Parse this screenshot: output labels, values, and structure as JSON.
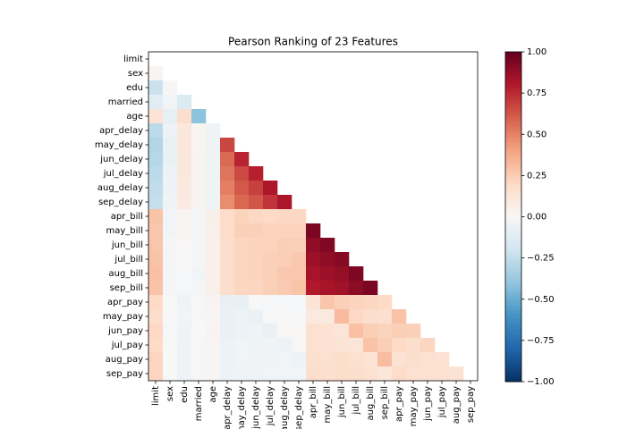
{
  "chart_data": {
    "type": "heatmap",
    "title": "Pearson Ranking of 23 Features",
    "categories": [
      "limit",
      "sex",
      "edu",
      "married",
      "age",
      "apr_delay",
      "may_delay",
      "jun_delay",
      "jul_delay",
      "aug_delay",
      "sep_delay",
      "apr_bill",
      "may_bill",
      "jun_bill",
      "jul_bill",
      "aug_bill",
      "sep_bill",
      "apr_pay",
      "may_pay",
      "jun_pay",
      "jul_pay",
      "aug_pay",
      "sep_pay"
    ],
    "values": [
      [],
      [
        0.02
      ],
      [
        -0.22,
        0.01
      ],
      [
        -0.11,
        -0.03,
        -0.14
      ],
      [
        0.14,
        -0.09,
        0.18,
        -0.41
      ],
      [
        -0.27,
        -0.06,
        0.11,
        0.02,
        -0.04
      ],
      [
        -0.3,
        -0.07,
        0.12,
        0.02,
        -0.05,
        0.67
      ],
      [
        -0.29,
        -0.07,
        0.11,
        0.03,
        -0.05,
        0.57,
        0.77
      ],
      [
        -0.27,
        -0.06,
        0.11,
        0.03,
        -0.05,
        0.54,
        0.66,
        0.78
      ],
      [
        -0.25,
        -0.06,
        0.1,
        0.03,
        -0.05,
        0.51,
        0.62,
        0.69,
        0.82
      ],
      [
        -0.24,
        -0.04,
        0.09,
        0.03,
        -0.05,
        0.47,
        0.58,
        0.63,
        0.72,
        0.82
      ],
      [
        0.29,
        -0.03,
        0.02,
        -0.02,
        0.06,
        0.19,
        0.23,
        0.21,
        0.2,
        0.21,
        0.21
      ],
      [
        0.28,
        -0.03,
        0.02,
        -0.02,
        0.05,
        0.19,
        0.24,
        0.24,
        0.23,
        0.23,
        0.23,
        0.95
      ],
      [
        0.28,
        -0.02,
        0.01,
        -0.02,
        0.05,
        0.18,
        0.22,
        0.23,
        0.23,
        0.25,
        0.24,
        0.89,
        0.93
      ],
      [
        0.29,
        -0.02,
        0.0,
        -0.02,
        0.05,
        0.18,
        0.22,
        0.23,
        0.24,
        0.25,
        0.27,
        0.86,
        0.89,
        0.92
      ],
      [
        0.3,
        -0.02,
        -0.01,
        -0.03,
        0.05,
        0.18,
        0.22,
        0.23,
        0.24,
        0.27,
        0.27,
        0.83,
        0.86,
        0.88,
        0.94
      ],
      [
        0.29,
        -0.02,
        -0.01,
        -0.02,
        0.05,
        0.18,
        0.22,
        0.22,
        0.24,
        0.26,
        0.29,
        0.8,
        0.83,
        0.85,
        0.9,
        0.95
      ],
      [
        0.2,
        0.0,
        -0.04,
        -0.01,
        0.03,
        -0.08,
        -0.08,
        0.0,
        -0.01,
        -0.01,
        -0.01,
        0.14,
        0.28,
        0.24,
        0.23,
        0.22,
        0.2
      ],
      [
        0.18,
        0.0,
        -0.03,
        -0.01,
        0.02,
        -0.07,
        -0.06,
        -0.07,
        0.0,
        0.0,
        -0.01,
        0.1,
        0.1,
        0.32,
        0.21,
        0.18,
        0.17,
        0.29
      ],
      [
        0.21,
        -0.01,
        -0.04,
        0.0,
        0.03,
        -0.07,
        -0.06,
        -0.05,
        -0.07,
        0.01,
        0.01,
        0.16,
        0.15,
        0.13,
        0.3,
        0.25,
        0.23,
        0.25,
        0.24
      ],
      [
        0.2,
        0.0,
        -0.04,
        -0.01,
        0.02,
        -0.06,
        -0.03,
        -0.05,
        -0.04,
        -0.06,
        0.01,
        0.16,
        0.15,
        0.14,
        0.13,
        0.29,
        0.25,
        0.2,
        0.18,
        0.22
      ],
      [
        0.22,
        0.0,
        -0.04,
        -0.01,
        0.02,
        -0.06,
        -0.03,
        -0.04,
        -0.04,
        -0.03,
        -0.06,
        0.17,
        0.16,
        0.18,
        0.16,
        0.14,
        0.31,
        0.15,
        0.18,
        0.16,
        0.15
      ],
      [
        0.22,
        0.0,
        -0.04,
        -0.01,
        0.02,
        -0.06,
        -0.04,
        -0.04,
        -0.03,
        -0.03,
        -0.03,
        0.18,
        0.17,
        0.18,
        0.18,
        0.16,
        0.12,
        0.19,
        0.16,
        0.16,
        0.16,
        0.15
      ]
    ],
    "colormap": "RdBu_r",
    "clim": [
      -1,
      1
    ],
    "cticks": [
      {
        "value": -1,
        "label": "−1.00"
      },
      {
        "value": -0.75,
        "label": "−0.75"
      },
      {
        "value": -0.5,
        "label": "−0.50"
      },
      {
        "value": -0.25,
        "label": "−0.25"
      },
      {
        "value": 0,
        "label": "0.00"
      },
      {
        "value": 0.25,
        "label": "0.25"
      },
      {
        "value": 0.5,
        "label": "0.50"
      },
      {
        "value": 0.75,
        "label": "0.75"
      },
      {
        "value": 1,
        "label": "1.00"
      }
    ]
  }
}
